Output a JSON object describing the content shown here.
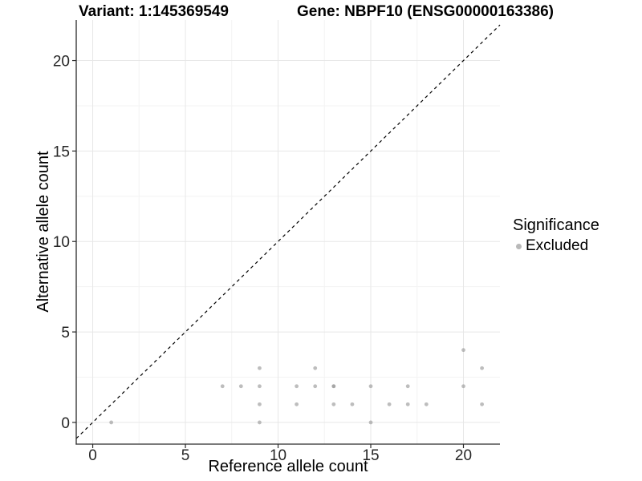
{
  "header": {
    "variant_label": "Variant: 1:145369549",
    "gene_label": "Gene: NBPF10 (ENSG00000163386)"
  },
  "chart_data": {
    "type": "scatter",
    "title": "Variant: 1:145369549   Gene: NBPF10 (ENSG00000163386)",
    "xlabel": "Reference allele count",
    "ylabel": "Alternative allele count",
    "xlim": [
      -0.89,
      21.97
    ],
    "ylim": [
      -1.2,
      22.24
    ],
    "x_ticks": [
      0,
      5,
      10,
      15,
      20
    ],
    "y_ticks": [
      0,
      5,
      10,
      15,
      20
    ],
    "x_minor_breaks": [
      2.5,
      7.5,
      12.5,
      17.5
    ],
    "y_minor_breaks": [
      2.5,
      7.5,
      12.5,
      17.5
    ],
    "grid": "major+minor",
    "reference_line": {
      "type": "identity y=x",
      "style": "dashed",
      "color": "#000000"
    },
    "legend": {
      "title": "Significance",
      "position": "right",
      "entries": [
        {
          "label": "Excluded",
          "color": "#b9b9b9"
        }
      ]
    },
    "series": [
      {
        "name": "Excluded",
        "color": "#999999",
        "opacity": 0.65,
        "points": [
          [
            1,
            0
          ],
          [
            7,
            2
          ],
          [
            8,
            2
          ],
          [
            9,
            0
          ],
          [
            9,
            1
          ],
          [
            9,
            2
          ],
          [
            9,
            3
          ],
          [
            11,
            1
          ],
          [
            11,
            2
          ],
          [
            12,
            2
          ],
          [
            12,
            3
          ],
          [
            13,
            1
          ],
          [
            13,
            2
          ],
          [
            13,
            2
          ],
          [
            14,
            1
          ],
          [
            15,
            0
          ],
          [
            15,
            2
          ],
          [
            16,
            1
          ],
          [
            17,
            1
          ],
          [
            17,
            2
          ],
          [
            18,
            1
          ],
          [
            20,
            2
          ],
          [
            20,
            4
          ],
          [
            21,
            1
          ],
          [
            21,
            3
          ]
        ]
      }
    ]
  },
  "colors": {
    "background": "#ffffff",
    "grid_major": "#e7e7e7",
    "grid_minor": "#f3f3f3",
    "axis_line": "#2b2b2b",
    "tick_label": "#262626",
    "point": "#b5b5b5",
    "point_overlap": "#a2a2a2",
    "identity_line": "#000000"
  }
}
